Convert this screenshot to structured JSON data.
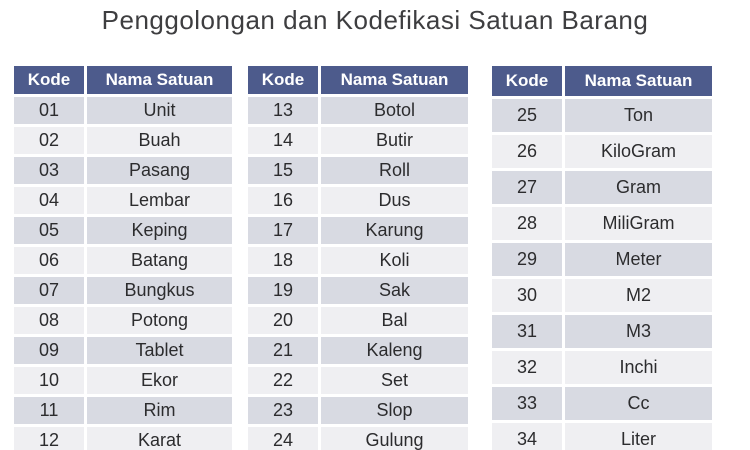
{
  "title": "Penggolongan dan Kodefikasi Satuan Barang",
  "colors": {
    "page_bg": "#ffffff",
    "title_text": "#3e3e40",
    "header_bg": "#4d5b8c",
    "header_text": "#ffffff",
    "row_odd_bg": "#d8dae2",
    "row_even_bg": "#efeff2",
    "cell_text": "#2c2c2e"
  },
  "tables": [
    {
      "name": "table-1",
      "headers": [
        "Kode",
        "Nama Satuan"
      ],
      "rows": [
        [
          "01",
          "Unit"
        ],
        [
          "02",
          "Buah"
        ],
        [
          "03",
          "Pasang"
        ],
        [
          "04",
          "Lembar"
        ],
        [
          "05",
          "Keping"
        ],
        [
          "06",
          "Batang"
        ],
        [
          "07",
          "Bungkus"
        ],
        [
          "08",
          "Potong"
        ],
        [
          "09",
          "Tablet"
        ],
        [
          "10",
          "Ekor"
        ],
        [
          "11",
          "Rim"
        ],
        [
          "12",
          "Karat"
        ]
      ]
    },
    {
      "name": "table-2",
      "headers": [
        "Kode",
        "Nama Satuan"
      ],
      "rows": [
        [
          "13",
          "Botol"
        ],
        [
          "14",
          "Butir"
        ],
        [
          "15",
          "Roll"
        ],
        [
          "16",
          "Dus"
        ],
        [
          "17",
          "Karung"
        ],
        [
          "18",
          "Koli"
        ],
        [
          "19",
          "Sak"
        ],
        [
          "20",
          "Bal"
        ],
        [
          "21",
          "Kaleng"
        ],
        [
          "22",
          "Set"
        ],
        [
          "23",
          "Slop"
        ],
        [
          "24",
          "Gulung"
        ]
      ]
    },
    {
      "name": "table-3",
      "headers": [
        "Kode",
        "Nama Satuan"
      ],
      "rows": [
        [
          "25",
          "Ton"
        ],
        [
          "26",
          "KiloGram"
        ],
        [
          "27",
          "Gram"
        ],
        [
          "28",
          "MiliGram"
        ],
        [
          "29",
          "Meter"
        ],
        [
          "30",
          "M2"
        ],
        [
          "31",
          "M3"
        ],
        [
          "32",
          "Inchi"
        ],
        [
          "33",
          "Cc"
        ],
        [
          "34",
          "Liter"
        ]
      ]
    }
  ]
}
